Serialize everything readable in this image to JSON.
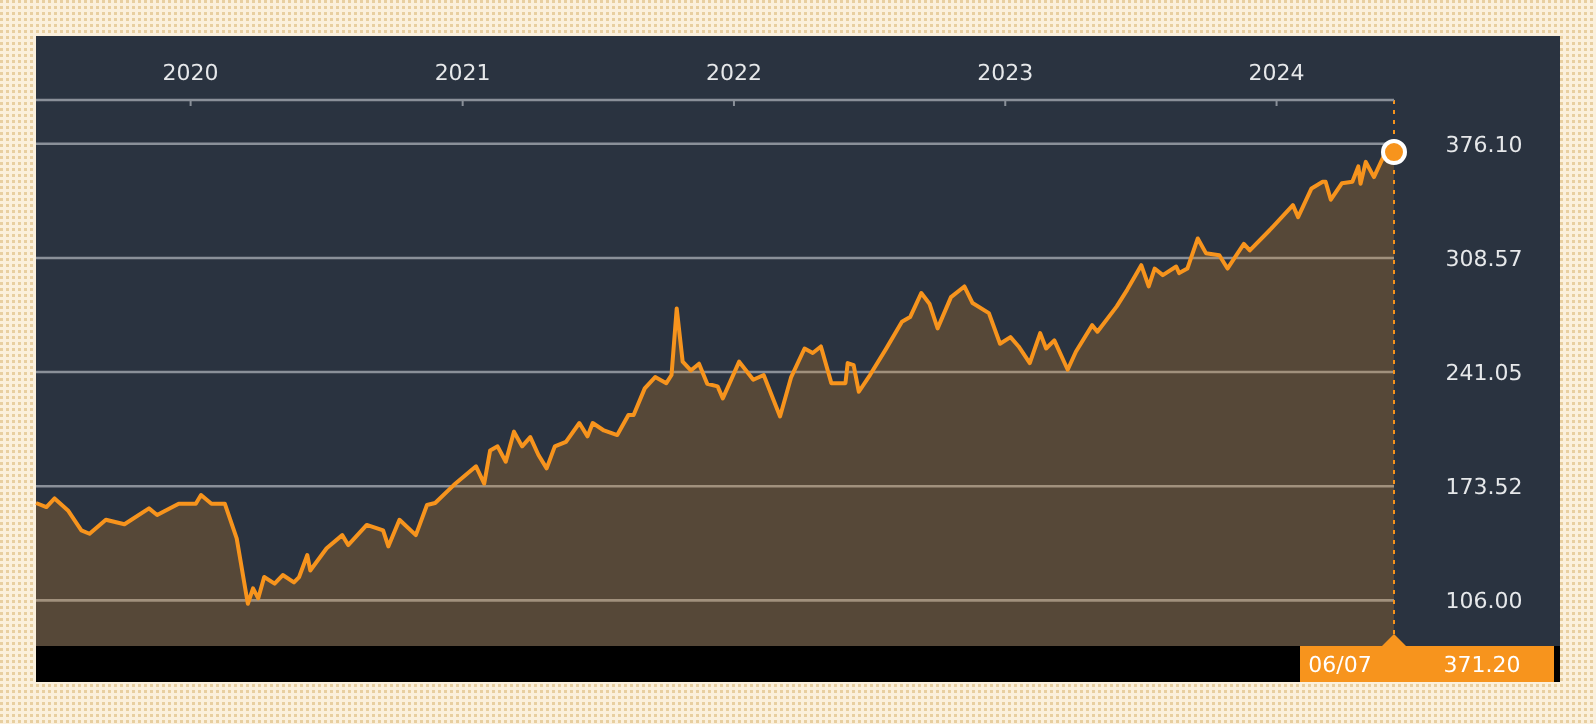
{
  "chart_data": {
    "type": "area",
    "x": [
      "2019-06-07",
      "2019-06-21",
      "2019-07-02",
      "2019-07-20",
      "2019-08-07",
      "2019-08-18",
      "2019-09-09",
      "2019-10-04",
      "2019-11-06",
      "2019-11-17",
      "2019-12-16",
      "2020-01-08",
      "2020-01-15",
      "2020-01-29",
      "2020-02-16",
      "2020-03-03",
      "2020-03-18",
      "2020-03-25",
      "2020-04-01",
      "2020-04-09",
      "2020-04-23",
      "2020-05-04",
      "2020-05-19",
      "2020-05-26",
      "2020-06-06",
      "2020-06-10",
      "2020-07-02",
      "2020-07-23",
      "2020-07-31",
      "2020-08-25",
      "2020-09-16",
      "2020-09-23",
      "2020-10-08",
      "2020-10-30",
      "2020-11-14",
      "2020-11-25",
      "2020-12-20",
      "2021-01-19",
      "2021-01-30",
      "2021-02-07",
      "2021-02-17",
      "2021-02-28",
      "2021-03-11",
      "2021-03-22",
      "2021-04-02",
      "2021-04-13",
      "2021-04-24",
      "2021-05-05",
      "2021-05-20",
      "2021-06-07",
      "2021-06-18",
      "2021-06-25",
      "2021-07-10",
      "2021-07-28",
      "2021-08-12",
      "2021-08-19",
      "2021-09-03",
      "2021-09-17",
      "2021-10-02",
      "2021-10-09",
      "2021-10-16",
      "2021-10-24",
      "2021-11-04",
      "2021-11-15",
      "2021-11-26",
      "2021-12-10",
      "2021-12-17",
      "2022-01-08",
      "2022-01-27",
      "2022-02-10",
      "2022-03-04",
      "2022-03-19",
      "2022-04-06",
      "2022-04-17",
      "2022-04-28",
      "2022-05-12",
      "2022-05-31",
      "2022-06-03",
      "2022-06-11",
      "2022-06-18",
      "2022-07-03",
      "2022-07-24",
      "2022-08-15",
      "2022-08-26",
      "2022-09-10",
      "2022-09-21",
      "2022-10-02",
      "2022-10-20",
      "2022-11-07",
      "2022-11-18",
      "2022-12-10",
      "2022-12-25",
      "2023-01-08",
      "2023-01-19",
      "2023-02-03",
      "2023-02-17",
      "2023-02-25",
      "2023-03-08",
      "2023-03-26",
      "2023-04-06",
      "2023-04-28",
      "2023-05-05",
      "2023-05-31",
      "2023-06-14",
      "2023-07-03",
      "2023-07-13",
      "2023-07-21",
      "2023-08-01",
      "2023-08-19",
      "2023-08-23",
      "2023-09-03",
      "2023-09-17",
      "2023-09-28",
      "2023-10-16",
      "2023-10-27",
      "2023-11-18",
      "2023-11-26",
      "2023-12-25",
      "2024-01-23",
      "2024-01-30",
      "2024-02-17",
      "2024-03-03",
      "2024-03-07",
      "2024-03-14",
      "2024-03-29",
      "2024-04-12",
      "2024-04-20",
      "2024-04-23",
      "2024-04-30",
      "2024-05-11",
      "2024-05-26",
      "2024-06-07"
    ],
    "series": [
      {
        "color": "#f7941d",
        "values": [
          163.6,
          161.2,
          166.3,
          159.2,
          147.4,
          145.4,
          153.7,
          151,
          160.4,
          156.5,
          163.2,
          163.2,
          168.3,
          163.2,
          163.2,
          142.7,
          104,
          113.1,
          107.2,
          119.8,
          115.9,
          121,
          116.6,
          119.8,
          132.8,
          123.7,
          136.8,
          144.6,
          138.7,
          150.6,
          147.4,
          137.9,
          153.7,
          144.6,
          162.4,
          163.6,
          174.2,
          185.3,
          175,
          194.7,
          197.1,
          188,
          205.8,
          197.1,
          202.6,
          192,
          184.1,
          197.1,
          199.8,
          210.9,
          203,
          210.9,
          206.5,
          203.8,
          215.6,
          215.6,
          231.4,
          238.1,
          234.5,
          239.3,
          278.7,
          247.2,
          242,
          246,
          234.1,
          232.6,
          225.5,
          247.2,
          236.5,
          239.3,
          214.8,
          238.1,
          255,
          252.3,
          256.2,
          234.5,
          234.5,
          246.4,
          245.2,
          229.4,
          239.3,
          254.3,
          270.8,
          273.6,
          287.8,
          281.5,
          266.9,
          285.4,
          291.7,
          281.9,
          275.9,
          257.8,
          261.7,
          256.2,
          246.4,
          264.1,
          255,
          259.8,
          242.4,
          253.1,
          268.8,
          264.9,
          279.9,
          289.7,
          304.3,
          291.7,
          302.3,
          298.4,
          303.5,
          299.6,
          302.3,
          320.1,
          311.4,
          310.2,
          302.3,
          316.9,
          313,
          326,
          339.8,
          332.7,
          349.7,
          353.6,
          353.6,
          343,
          352.8,
          353.6,
          362.7,
          352.4,
          365.4,
          356.4,
          370.6,
          371.2
        ]
      }
    ],
    "xlim": [
      "2019-06-07",
      "2024-06-07"
    ],
    "xticks": [
      {
        "value": "2020-01-01",
        "label": "2020"
      },
      {
        "value": "2021-01-01",
        "label": "2021"
      },
      {
        "value": "2022-01-01",
        "label": "2022"
      },
      {
        "value": "2023-01-01",
        "label": "2023"
      },
      {
        "value": "2024-01-01",
        "label": "2024"
      }
    ],
    "ylim": [
      79,
      402
    ],
    "yticks": [
      {
        "value": 106,
        "label": "106.00"
      },
      {
        "value": 173.52,
        "label": "173.52"
      },
      {
        "value": 241.05,
        "label": "241.05"
      },
      {
        "value": 308.57,
        "label": "308.57"
      },
      {
        "value": 376.1,
        "label": "376.10"
      }
    ],
    "grid": "y",
    "marker": "none",
    "line_style": "solid",
    "ref_lines": [
      {
        "axis": "x",
        "value": "2024-06-07",
        "color": "#f7941d",
        "line_style": "dotted"
      }
    ],
    "annotations": [
      "06/07",
      "371.20"
    ]
  }
}
